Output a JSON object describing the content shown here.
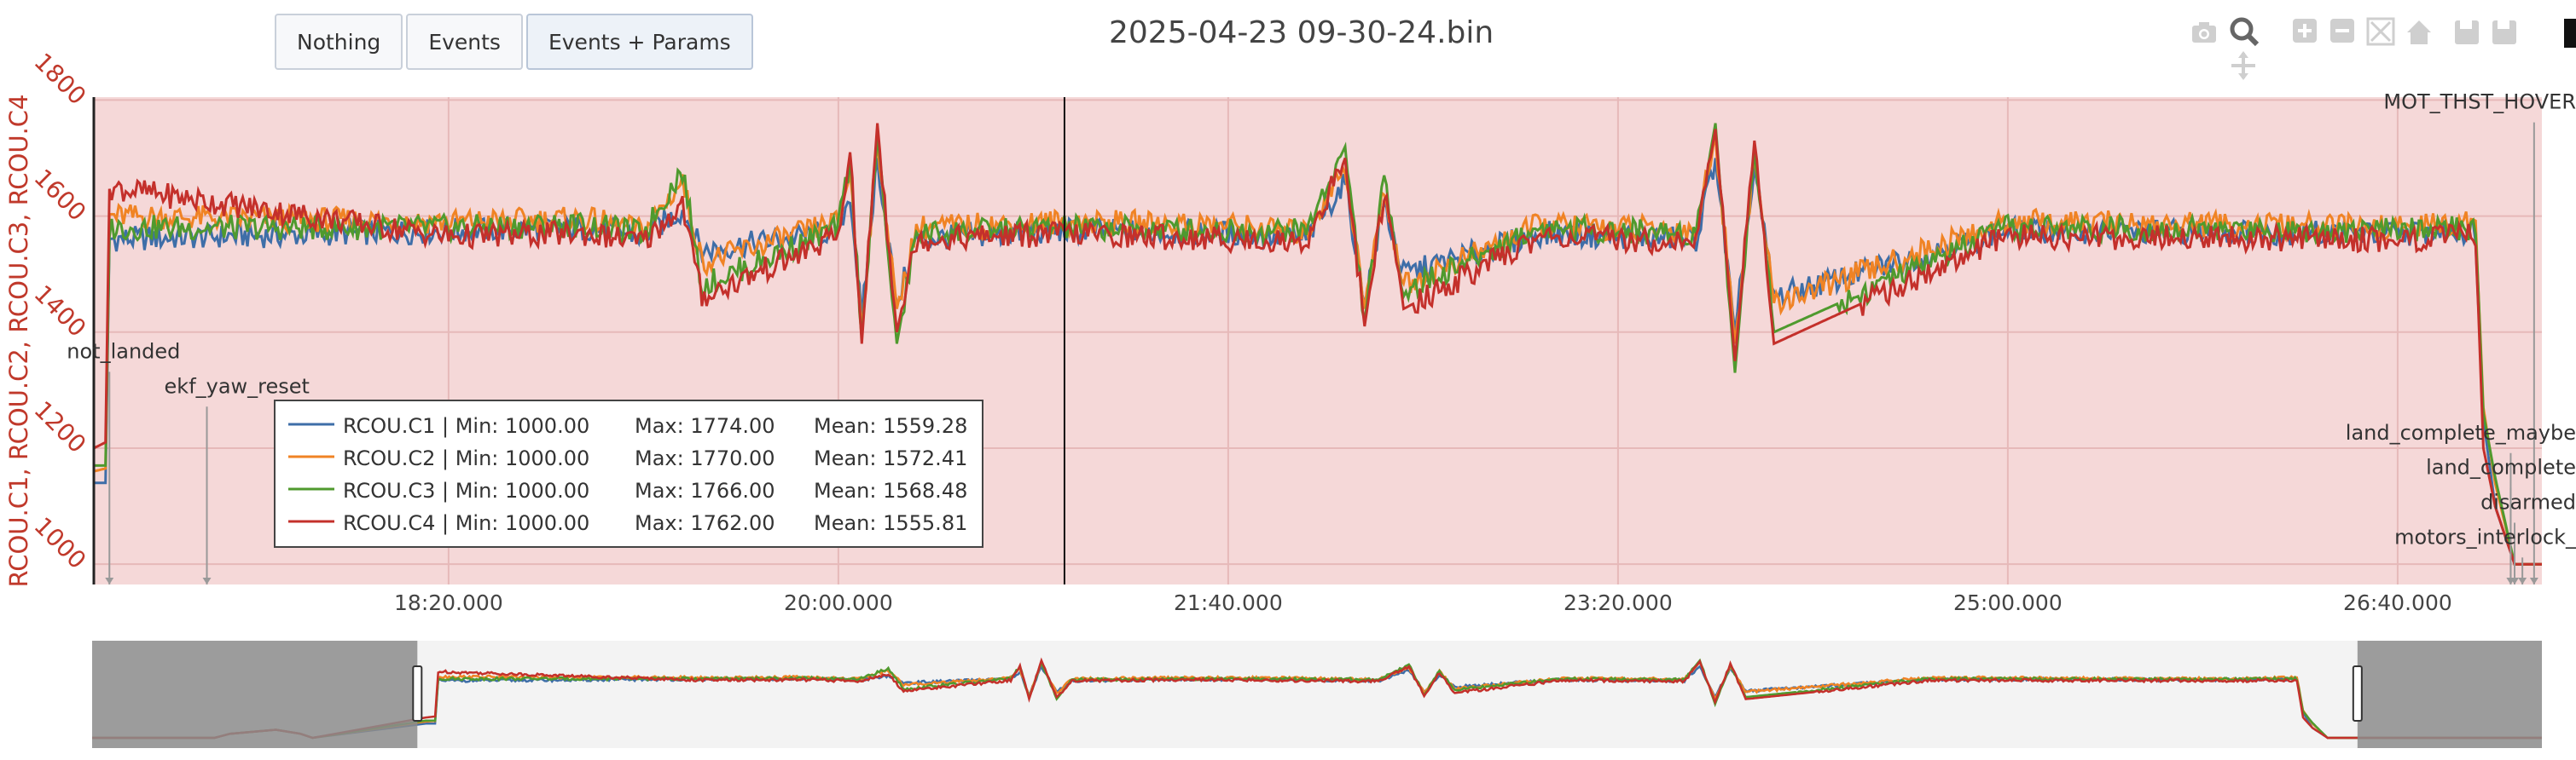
{
  "buttons": [
    {
      "label": "Nothing",
      "active": false
    },
    {
      "label": "Events",
      "active": false
    },
    {
      "label": "Events + Params",
      "active": true
    }
  ],
  "title": "2025-04-23 09-30-24.bin",
  "modebar": [
    "camera-icon",
    "zoom-icon",
    "zoom-in-icon",
    "zoom-out-icon",
    "autoscale-icon",
    "reset-axes-icon",
    "save-icon",
    "save-alt-icon",
    "pan-icon"
  ],
  "colors": {
    "RCOU.C1": "#3e6ea8",
    "RCOU.C2": "#f08324",
    "RCOU.C3": "#4f9a2e",
    "RCOU.C4": "#c4302b",
    "axis": "#c0392b",
    "plot_bg": "#f5d8d8"
  },
  "chart_data": {
    "type": "line",
    "title": "2025-04-23 09-30-24.bin",
    "ylabel": "RCOU.C1, RCOU.C2, RCOU.C3, RCOU.C4",
    "xlabel": "",
    "x_unit": "seconds (mm:ss.mmm)",
    "xlim": [
      1009,
      1637
    ],
    "ylim": [
      965,
      1805
    ],
    "x_ticks": [
      {
        "t": 1100,
        "label": "18:20.000"
      },
      {
        "t": 1200,
        "label": "20:00.000"
      },
      {
        "t": 1300,
        "label": "21:40.000"
      },
      {
        "t": 1400,
        "label": "23:20.000"
      },
      {
        "t": 1500,
        "label": "25:00.000"
      },
      {
        "t": 1600,
        "label": "26:40.000"
      }
    ],
    "y_ticks": [
      1000,
      1200,
      1400,
      1600,
      1800
    ],
    "grid": true,
    "cursor_x": 1258,
    "series": [
      {
        "name": "RCOU.C1",
        "min": 1000.0,
        "max": 1774.0,
        "mean": 1559.28,
        "min_label": "1000.00",
        "max_label": "1774.00",
        "mean_label": "1559.28",
        "points": [
          [
            1009,
            1140
          ],
          [
            1012,
            1140
          ],
          [
            1013,
            1560
          ],
          [
            1100,
            1575
          ],
          [
            1135,
            1580
          ],
          [
            1150,
            1565
          ],
          [
            1160,
            1610
          ],
          [
            1165,
            1540
          ],
          [
            1200,
            1575
          ],
          [
            1203,
            1640
          ],
          [
            1206,
            1420
          ],
          [
            1210,
            1700
          ],
          [
            1215,
            1450
          ],
          [
            1220,
            1560
          ],
          [
            1258,
            1575
          ],
          [
            1300,
            1570
          ],
          [
            1320,
            1560
          ],
          [
            1330,
            1660
          ],
          [
            1335,
            1450
          ],
          [
            1340,
            1620
          ],
          [
            1345,
            1500
          ],
          [
            1380,
            1570
          ],
          [
            1420,
            1560
          ],
          [
            1425,
            1700
          ],
          [
            1430,
            1400
          ],
          [
            1435,
            1680
          ],
          [
            1440,
            1460
          ],
          [
            1500,
            1575
          ],
          [
            1600,
            1570
          ],
          [
            1620,
            1575
          ],
          [
            1622,
            1250
          ],
          [
            1625,
            1100
          ],
          [
            1630,
            1000
          ],
          [
            1637,
            1000
          ]
        ]
      },
      {
        "name": "RCOU.C2",
        "min": 1000.0,
        "max": 1770.0,
        "mean": 1572.41,
        "min_label": "1000.00",
        "max_label": "1770.00",
        "mean_label": "1572.41",
        "points": [
          [
            1009,
            1160
          ],
          [
            1012,
            1165
          ],
          [
            1013,
            1600
          ],
          [
            1100,
            1590
          ],
          [
            1135,
            1595
          ],
          [
            1150,
            1575
          ],
          [
            1160,
            1660
          ],
          [
            1165,
            1520
          ],
          [
            1200,
            1590
          ],
          [
            1203,
            1680
          ],
          [
            1206,
            1400
          ],
          [
            1210,
            1730
          ],
          [
            1215,
            1440
          ],
          [
            1220,
            1580
          ],
          [
            1258,
            1590
          ],
          [
            1300,
            1585
          ],
          [
            1320,
            1570
          ],
          [
            1330,
            1690
          ],
          [
            1335,
            1440
          ],
          [
            1340,
            1650
          ],
          [
            1345,
            1480
          ],
          [
            1380,
            1585
          ],
          [
            1420,
            1575
          ],
          [
            1425,
            1740
          ],
          [
            1430,
            1380
          ],
          [
            1435,
            1700
          ],
          [
            1440,
            1450
          ],
          [
            1500,
            1590
          ],
          [
            1600,
            1580
          ],
          [
            1620,
            1590
          ],
          [
            1622,
            1270
          ],
          [
            1625,
            1140
          ],
          [
            1630,
            1000
          ],
          [
            1637,
            1000
          ]
        ]
      },
      {
        "name": "RCOU.C3",
        "min": 1000.0,
        "max": 1766.0,
        "mean": 1568.48,
        "min_label": "1000.00",
        "max_label": "1766.00",
        "mean_label": "1568.48",
        "points": [
          [
            1009,
            1170
          ],
          [
            1012,
            1170
          ],
          [
            1013,
            1580
          ],
          [
            1100,
            1580
          ],
          [
            1135,
            1585
          ],
          [
            1150,
            1570
          ],
          [
            1160,
            1680
          ],
          [
            1165,
            1480
          ],
          [
            1200,
            1580
          ],
          [
            1203,
            1700
          ],
          [
            1206,
            1390
          ],
          [
            1210,
            1740
          ],
          [
            1215,
            1380
          ],
          [
            1220,
            1570
          ],
          [
            1258,
            1580
          ],
          [
            1300,
            1575
          ],
          [
            1320,
            1575
          ],
          [
            1330,
            1720
          ],
          [
            1335,
            1420
          ],
          [
            1340,
            1660
          ],
          [
            1345,
            1470
          ],
          [
            1380,
            1580
          ],
          [
            1420,
            1570
          ],
          [
            1425,
            1760
          ],
          [
            1430,
            1330
          ],
          [
            1435,
            1720
          ],
          [
            1440,
            1400
          ],
          [
            1500,
            1580
          ],
          [
            1600,
            1575
          ],
          [
            1620,
            1580
          ],
          [
            1622,
            1260
          ],
          [
            1625,
            1150
          ],
          [
            1630,
            1000
          ],
          [
            1637,
            1000
          ]
        ]
      },
      {
        "name": "RCOU.C4",
        "min": 1000.0,
        "max": 1762.0,
        "mean": 1555.81,
        "min_label": "1000.00",
        "max_label": "1762.00",
        "mean_label": "1555.81",
        "points": [
          [
            1009,
            1200
          ],
          [
            1012,
            1210
          ],
          [
            1013,
            1650
          ],
          [
            1100,
            1565
          ],
          [
            1135,
            1570
          ],
          [
            1150,
            1555
          ],
          [
            1160,
            1620
          ],
          [
            1165,
            1460
          ],
          [
            1200,
            1565
          ],
          [
            1203,
            1710
          ],
          [
            1206,
            1380
          ],
          [
            1210,
            1760
          ],
          [
            1215,
            1400
          ],
          [
            1220,
            1560
          ],
          [
            1258,
            1570
          ],
          [
            1300,
            1560
          ],
          [
            1320,
            1555
          ],
          [
            1330,
            1700
          ],
          [
            1335,
            1410
          ],
          [
            1340,
            1640
          ],
          [
            1345,
            1440
          ],
          [
            1380,
            1565
          ],
          [
            1420,
            1555
          ],
          [
            1425,
            1750
          ],
          [
            1430,
            1350
          ],
          [
            1435,
            1730
          ],
          [
            1440,
            1380
          ],
          [
            1500,
            1565
          ],
          [
            1600,
            1560
          ],
          [
            1620,
            1565
          ],
          [
            1622,
            1200
          ],
          [
            1625,
            1100
          ],
          [
            1630,
            1000
          ],
          [
            1637,
            1000
          ]
        ]
      }
    ],
    "events": [
      {
        "label": "not_landed",
        "t": 1013,
        "label_y": 1355
      },
      {
        "label": "ekf_yaw_reset",
        "t": 1038,
        "label_y": 1295
      },
      {
        "label": "MOT_THST_HOVER",
        "t": 1635,
        "label_y": 1785
      },
      {
        "label": "land_complete_maybe",
        "t": 1629,
        "label_y": 1215
      },
      {
        "label": "land_complete",
        "t": 1629,
        "label_y": 1155
      },
      {
        "label": "disarmed",
        "t": 1630,
        "label_y": 1095
      },
      {
        "label": "motors_interlock_",
        "t": 1632,
        "label_y": 1035
      }
    ],
    "legend_position": "lower-left",
    "rangeslider": {
      "selected_range": [
        1009,
        1637
      ]
    }
  }
}
